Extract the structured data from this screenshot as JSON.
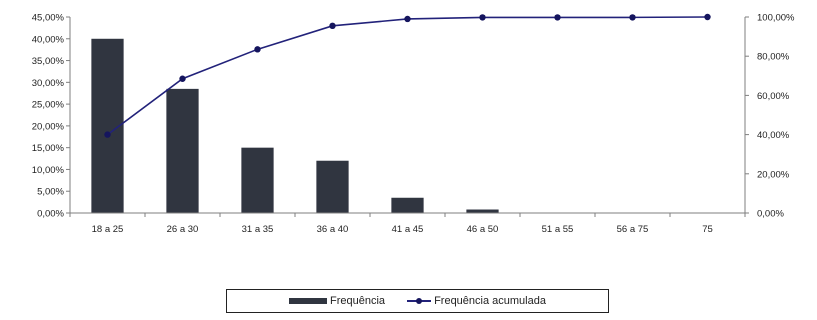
{
  "chart_data": {
    "type": "bar",
    "categories": [
      "18 a 25",
      "26 a 30",
      "31 a 35",
      "36 a 40",
      "41 a 45",
      "46 a 50",
      "51 a 55",
      "56 a 75",
      "75"
    ],
    "series": [
      {
        "name": "Frequência",
        "type": "bar",
        "axis": "left",
        "values": [
          40.0,
          28.5,
          15.0,
          12.0,
          3.5,
          0.8,
          0.0,
          0.0,
          0.0
        ]
      },
      {
        "name": "Frequência acumulada",
        "type": "line",
        "axis": "right",
        "values": [
          40.0,
          68.5,
          83.5,
          95.5,
          99.0,
          99.8,
          99.8,
          99.8,
          100.0
        ]
      }
    ],
    "left_axis": {
      "ticks": [
        "0,00%",
        "5,00%",
        "10,00%",
        "15,00%",
        "20,00%",
        "25,00%",
        "30,00%",
        "35,00%",
        "40,00%",
        "45,00%"
      ],
      "ylim": [
        0,
        45
      ]
    },
    "right_axis": {
      "ticks": [
        "0,00%",
        "20,00%",
        "40,00%",
        "60,00%",
        "80,00%",
        "100,00%"
      ],
      "ylim": [
        0,
        100
      ]
    },
    "grid": false,
    "legend_position": "bottom",
    "colors": {
      "bar": "#303540",
      "line": "#22227a",
      "marker": "#15155e",
      "axis": "#7f7f7f"
    }
  }
}
